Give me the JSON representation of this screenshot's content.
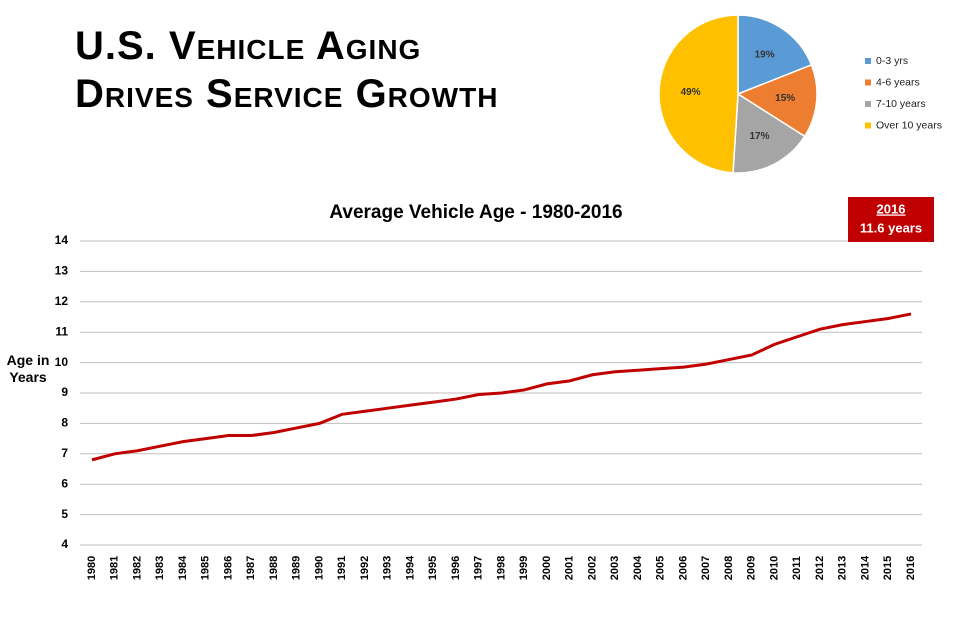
{
  "header": {
    "title_lines": [
      "U.S. Vehicle Aging",
      "Drives Service Growth"
    ]
  },
  "chart_data": [
    {
      "type": "pie",
      "categories": [
        "0-3 yrs",
        "4-6 years",
        "7-10 years",
        "Over 10 years"
      ],
      "values": [
        19,
        15,
        17,
        49
      ],
      "value_labels": [
        "19%",
        "15%",
        "17%",
        "49%"
      ],
      "colors": [
        "#5b9bd5",
        "#ed7d31",
        "#a5a5a5",
        "#ffc000"
      ],
      "legend": "right"
    },
    {
      "type": "line",
      "title": "Average Vehicle Age - 1980-2016",
      "y_label": "Age in Years",
      "x": [
        1980,
        1981,
        1982,
        1983,
        1984,
        1985,
        1986,
        1987,
        1988,
        1989,
        1990,
        1991,
        1992,
        1993,
        1994,
        1995,
        1996,
        1997,
        1998,
        1999,
        2000,
        2001,
        2002,
        2003,
        2004,
        2005,
        2006,
        2007,
        2008,
        2009,
        2010,
        2011,
        2012,
        2013,
        2014,
        2015,
        2016
      ],
      "series": [
        {
          "name": "Average Vehicle Age",
          "color": "#c00000",
          "values": [
            6.8,
            7.0,
            7.1,
            7.25,
            7.4,
            7.5,
            7.6,
            7.6,
            7.7,
            7.85,
            8.0,
            8.3,
            8.4,
            8.5,
            8.6,
            8.7,
            8.8,
            8.95,
            9.0,
            9.1,
            9.3,
            9.4,
            9.6,
            9.7,
            9.75,
            9.8,
            9.85,
            9.95,
            10.1,
            10.25,
            10.6,
            10.85,
            11.1,
            11.25,
            11.35,
            11.45,
            11.6
          ]
        }
      ],
      "xlim": [
        1980,
        2016
      ],
      "ylim": [
        4,
        14
      ],
      "yticks": [
        4,
        5,
        6,
        7,
        8,
        9,
        10,
        11,
        12,
        13,
        14
      ],
      "grid": true,
      "annotation": {
        "title": "2016",
        "text": "11.6 years",
        "color": "#c00000"
      }
    }
  ]
}
